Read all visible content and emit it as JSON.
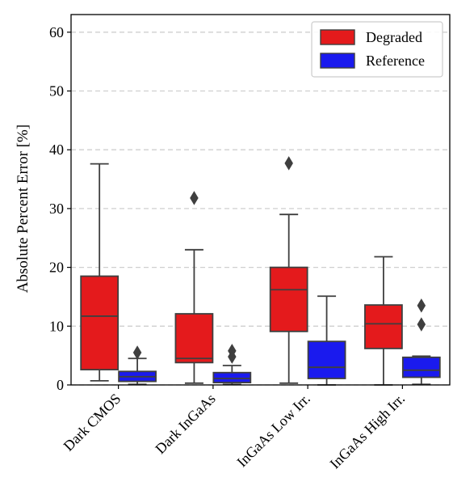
{
  "chart_data": {
    "type": "box",
    "title": "",
    "xlabel": "",
    "ylabel": "Absolute Percent Error [%]",
    "ylim": [
      0,
      63
    ],
    "yticks": [
      0,
      10,
      20,
      30,
      40,
      50,
      60
    ],
    "grid": "horizontal-dashed",
    "legend_position": "top-right",
    "categories": [
      "Dark CMOS",
      "Dark InGaAs",
      "InGaAs Low Irr.",
      "InGaAs High Irr."
    ],
    "series": [
      {
        "name": "Degraded",
        "color": "#e41a1c",
        "boxes": [
          {
            "whisker_low": 0.7,
            "q1": 2.6,
            "median": 11.7,
            "q3": 18.5,
            "whisker_high": 37.6,
            "outliers": []
          },
          {
            "whisker_low": 0.3,
            "q1": 3.8,
            "median": 4.5,
            "q3": 12.1,
            "whisker_high": 23.0,
            "outliers": [
              31.8
            ]
          },
          {
            "whisker_low": 0.3,
            "q1": 9.1,
            "median": 16.2,
            "q3": 20.0,
            "whisker_high": 29.0,
            "outliers": [
              37.7
            ]
          },
          {
            "whisker_low": 0.0,
            "q1": 6.2,
            "median": 10.4,
            "q3": 13.6,
            "whisker_high": 21.8,
            "outliers": []
          }
        ]
      },
      {
        "name": "Reference",
        "color": "#1a1aee",
        "boxes": [
          {
            "whisker_low": 0.1,
            "q1": 0.6,
            "median": 1.4,
            "q3": 2.3,
            "whisker_high": 4.5,
            "outliers": [
              5.5
            ]
          },
          {
            "whisker_low": 0.1,
            "q1": 0.4,
            "median": 1.1,
            "q3": 2.1,
            "whisker_high": 3.3,
            "outliers": [
              4.8,
              5.8
            ]
          },
          {
            "whisker_low": 0.0,
            "q1": 1.1,
            "median": 3.0,
            "q3": 7.4,
            "whisker_high": 15.1,
            "outliers": []
          },
          {
            "whisker_low": 0.1,
            "q1": 1.3,
            "median": 2.5,
            "q3": 4.7,
            "whisker_high": 4.9,
            "outliers": [
              10.3,
              13.5
            ]
          }
        ]
      }
    ]
  }
}
